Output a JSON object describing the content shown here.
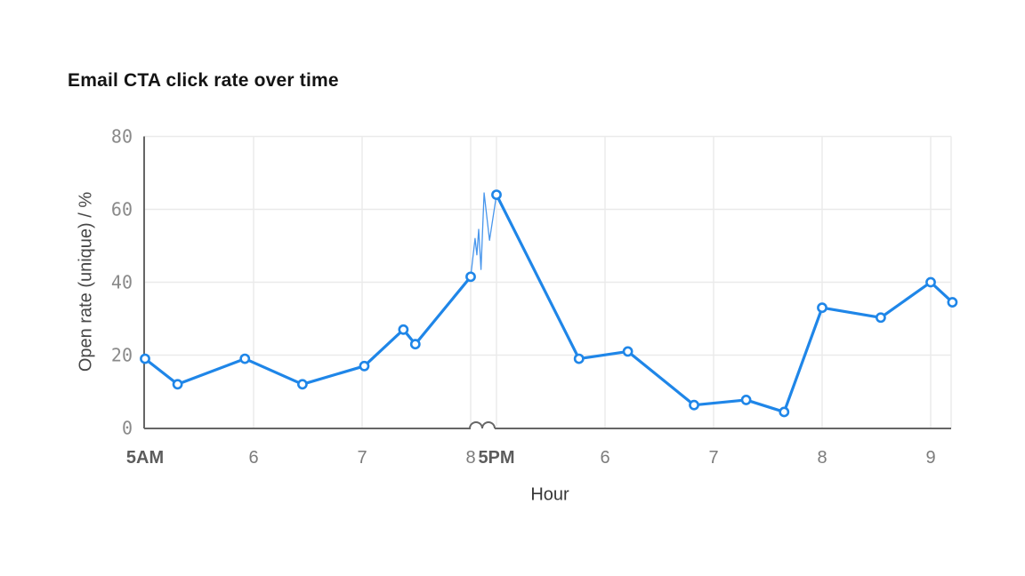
{
  "chart_data": {
    "type": "line",
    "title": "Email CTA click rate over time",
    "xlabel": "Hour",
    "ylabel": "Open rate (unique) / %",
    "ylim": [
      0,
      80
    ],
    "y_ticks": [
      0,
      20,
      40,
      60,
      80
    ],
    "x_ticks": [
      {
        "label": "5AM",
        "hour": 5,
        "bold": true
      },
      {
        "label": "6",
        "hour": 6,
        "bold": false
      },
      {
        "label": "7",
        "hour": 7,
        "bold": false
      },
      {
        "label": "8",
        "hour": 8,
        "bold": false
      },
      {
        "label": "5PM",
        "hour": 17,
        "bold": true
      },
      {
        "label": "6",
        "hour": 18,
        "bold": false
      },
      {
        "label": "7",
        "hour": 19,
        "bold": false
      },
      {
        "label": "8",
        "hour": 20,
        "bold": false
      },
      {
        "label": "9",
        "hour": 21,
        "bold": false
      }
    ],
    "grid": true,
    "legend": false,
    "axis_break": {
      "between": [
        "8AM",
        "5PM"
      ],
      "detail_points": [
        {
          "fraction": 0.17,
          "value": 52
        },
        {
          "fraction": 0.24,
          "value": 47.5
        },
        {
          "fraction": 0.31,
          "value": 54.5
        },
        {
          "fraction": 0.4,
          "value": 43.5
        },
        {
          "fraction": 0.52,
          "value": 64.5
        },
        {
          "fraction": 0.73,
          "value": 51.5
        }
      ]
    },
    "series": [
      {
        "name": "Open rate (unique) %",
        "points": [
          {
            "hour": 5.0,
            "value": 19
          },
          {
            "hour": 5.3,
            "value": 12
          },
          {
            "hour": 5.92,
            "value": 19
          },
          {
            "hour": 6.45,
            "value": 12
          },
          {
            "hour": 7.02,
            "value": 17
          },
          {
            "hour": 7.38,
            "value": 27
          },
          {
            "hour": 7.49,
            "value": 23
          },
          {
            "hour": 8.0,
            "value": 41.5
          },
          {
            "hour": 17.0,
            "value": 64
          },
          {
            "hour": 17.76,
            "value": 19
          },
          {
            "hour": 18.21,
            "value": 21
          },
          {
            "hour": 18.82,
            "value": 6.3
          },
          {
            "hour": 19.3,
            "value": 7.7
          },
          {
            "hour": 19.65,
            "value": 4.4
          },
          {
            "hour": 20.0,
            "value": 33
          },
          {
            "hour": 20.54,
            "value": 30.3
          },
          {
            "hour": 21.0,
            "value": 40
          },
          {
            "hour": 21.2,
            "value": 34.5
          }
        ]
      }
    ],
    "colors": {
      "line": "#1f86e8",
      "line_detail_thin": "#4896ec",
      "marker_fill": "#ffffff",
      "grid": "#eaeaea",
      "axis": "#666666",
      "tick_text": "#8a8a8a",
      "title_text": "#141414"
    }
  }
}
